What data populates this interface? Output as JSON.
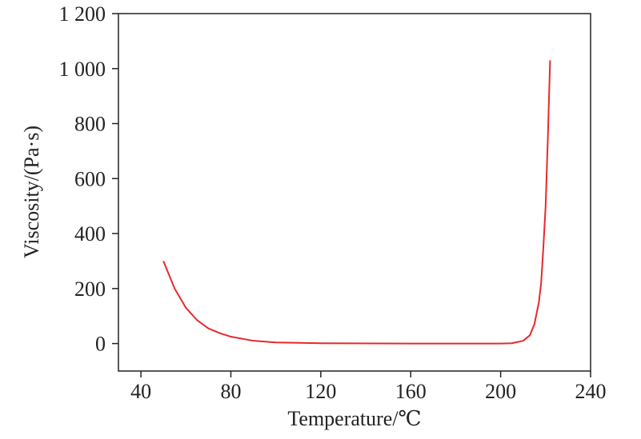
{
  "chart_data": {
    "type": "line",
    "x_label": "Temperature/℃",
    "y_label": "Viscosity/(Pa·s)",
    "x": [
      50,
      55,
      60,
      65,
      70,
      75,
      80,
      90,
      100,
      120,
      160,
      200,
      205,
      210,
      213,
      215,
      217,
      218,
      219,
      220,
      221,
      222
    ],
    "series": [
      {
        "color": "#e8282b",
        "values": [
          300,
          200,
          130,
          85,
          55,
          38,
          25,
          10,
          4,
          1,
          0,
          0,
          1,
          10,
          30,
          70,
          150,
          220,
          350,
          500,
          750,
          1030
        ]
      }
    ],
    "xlim": [
      30,
      240
    ],
    "xticks": [
      40,
      80,
      120,
      160,
      200,
      240
    ],
    "ylim": [
      -100,
      1200
    ],
    "yticks": [
      0,
      200,
      400,
      600,
      800,
      {
        "value": 1000,
        "label": "1 000"
      },
      {
        "value": 1200,
        "label": "1 200"
      }
    ]
  }
}
